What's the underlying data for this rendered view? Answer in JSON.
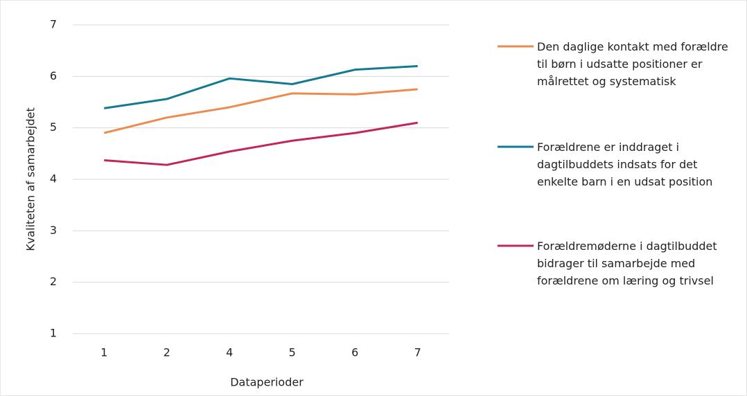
{
  "chart_data": {
    "type": "line",
    "x_label": "Dataperioder",
    "y_label": "Kvaliteten af samarbejdet",
    "categories": [
      "1",
      "2",
      "4",
      "5",
      "6",
      "7"
    ],
    "series": [
      {
        "name": "Den daglige kontakt med forældre til børn i udsatte positioner er målrettet og systematisk",
        "color": "#ed8b4f",
        "values": [
          4.9,
          5.2,
          5.4,
          5.67,
          5.65,
          5.75
        ]
      },
      {
        "name": "Forældrene er inddraget i dagtilbuddets indsats for det enkelte barn i en udsat position",
        "color": "#137a91",
        "values": [
          5.38,
          5.56,
          5.96,
          5.85,
          6.13,
          6.2
        ]
      },
      {
        "name": "Forældremøderne i dagtilbuddet bidrager til samarbejde med forældrene om læring og trivsel",
        "color": "#c4245d",
        "values": [
          4.37,
          4.28,
          4.54,
          4.75,
          4.9,
          5.1
        ]
      }
    ],
    "ylim": [
      1,
      7
    ],
    "yticks": [
      1,
      2,
      3,
      4,
      5,
      6,
      7
    ],
    "grid": true,
    "legend": "right"
  }
}
